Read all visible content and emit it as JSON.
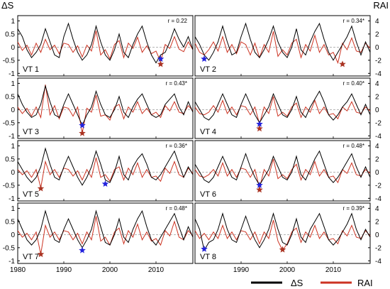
{
  "chart_data": {
    "type": "line",
    "left_axis_label": "ΔS",
    "right_axis_label": "RAI",
    "left_ticks": [
      "1",
      "0.5",
      "0",
      "-0.5",
      "-1"
    ],
    "right_ticks": [
      "4",
      "2",
      "0",
      "-2",
      "-4"
    ],
    "left_range": [
      -1.1,
      1.2
    ],
    "right_range": [
      -4.4,
      4.8
    ],
    "x_ticks": [
      "1980",
      "1990",
      "2000",
      "2010"
    ],
    "x_range": [
      1980,
      2018
    ],
    "grid": false,
    "legend": {
      "position": "bottom-right",
      "entries": [
        {
          "label": "ΔS",
          "color": "#000000"
        },
        {
          "label": "RAI",
          "color": "#cc3322"
        }
      ]
    },
    "colors": {
      "ds": "#000000",
      "rai": "#cc3322",
      "blue_star": "#2222dd",
      "red_star": "#aa3322",
      "zero_line": "#888888"
    },
    "years": [
      1980,
      1981,
      1982,
      1983,
      1984,
      1985,
      1986,
      1987,
      1988,
      1989,
      1990,
      1991,
      1992,
      1993,
      1994,
      1995,
      1996,
      1997,
      1998,
      1999,
      2000,
      2001,
      2002,
      2003,
      2004,
      2005,
      2006,
      2007,
      2008,
      2009,
      2010,
      2011,
      2012,
      2013,
      2014,
      2015,
      2016,
      2017,
      2018
    ],
    "panels": [
      {
        "label": "VT 1",
        "r": "r = 0.22",
        "ds": [
          0.7,
          0.4,
          -0.1,
          -0.4,
          -0.2,
          0.1,
          0.7,
          0.2,
          -0.3,
          -0.4,
          0.4,
          0.9,
          0.3,
          -0.2,
          -0.5,
          -0.3,
          0.1,
          0.8,
          0.2,
          -0.3,
          -0.5,
          -0.1,
          0.5,
          -0.2,
          -0.4,
          0.1,
          0.5,
          0.8,
          0.2,
          -0.3,
          -0.6,
          -0.3,
          -0.2,
          0.2,
          0.7,
          0.3,
          0.0,
          0.4,
          -0.1
        ],
        "rai": [
          0.8,
          -0.5,
          0.3,
          -1.2,
          0.6,
          -0.8,
          1.2,
          -0.4,
          0.3,
          -1.0,
          0.6,
          0.4,
          -0.8,
          0.2,
          -1.5,
          0.3,
          -0.6,
          2.5,
          -1.2,
          -0.4,
          -1.8,
          0.4,
          1.0,
          -1.6,
          0.6,
          -0.2,
          1.5,
          -0.8,
          0.2,
          -1.0,
          -0.6,
          -2.2,
          0.4,
          -0.2,
          1.6,
          -0.3,
          -0.7,
          0.8,
          -0.4
        ],
        "blue_star": {
          "year": 2011,
          "value": -0.45
        },
        "red_star": {
          "year": 2011,
          "value": -2.6
        }
      },
      {
        "label": "VT 2",
        "r": "r = 0.34*",
        "ds": [
          0.4,
          0.1,
          -0.3,
          -0.5,
          -0.2,
          0.2,
          0.8,
          0.2,
          -0.3,
          -0.2,
          0.4,
          0.9,
          0.3,
          -0.2,
          -0.4,
          -0.1,
          0.3,
          0.8,
          0.2,
          -0.2,
          -0.4,
          0.0,
          0.7,
          -0.1,
          -0.3,
          0.2,
          0.6,
          0.9,
          0.3,
          -0.2,
          -0.5,
          -0.2,
          0.1,
          0.4,
          0.8,
          0.2,
          -0.3,
          0.2,
          -0.2
        ],
        "rai": [
          0.6,
          -0.8,
          -1.2,
          -0.4,
          0.8,
          -0.6,
          1.6,
          -0.8,
          0.4,
          -1.0,
          0.8,
          0.4,
          -1.2,
          0.6,
          -1.6,
          0.4,
          -0.8,
          2.4,
          -1.4,
          -0.4,
          -1.2,
          0.6,
          1.2,
          -1.6,
          0.4,
          -0.6,
          1.8,
          -0.8,
          0.4,
          -1.2,
          -0.8,
          -2.4,
          0.6,
          -0.4,
          1.4,
          -0.6,
          -0.8,
          0.6,
          -0.2
        ],
        "blue_star": {
          "year": 1982,
          "value": -0.45
        },
        "red_star": {
          "year": 2012,
          "value": -2.6
        }
      },
      {
        "label": "VT 3",
        "r": "r = 0.43*",
        "ds": [
          0.6,
          0.2,
          -0.1,
          -0.3,
          -0.2,
          0.2,
          0.9,
          0.3,
          -0.2,
          -0.3,
          0.2,
          0.6,
          0.2,
          -0.2,
          -0.6,
          -0.2,
          0.1,
          0.7,
          0.2,
          -0.2,
          -0.3,
          0.0,
          0.5,
          -0.1,
          -0.3,
          0.1,
          0.4,
          0.6,
          0.2,
          -0.2,
          -0.3,
          -0.2,
          0.2,
          0.4,
          0.6,
          0.1,
          -0.2,
          0.3,
          -0.1
        ],
        "rai": [
          0.4,
          -0.6,
          0.2,
          -1.0,
          0.4,
          -1.2,
          3.8,
          -0.8,
          0.6,
          -1.4,
          0.4,
          0.2,
          -1.0,
          0.4,
          -3.6,
          0.2,
          -0.4,
          2.2,
          -1.0,
          -0.8,
          -1.6,
          0.4,
          0.8,
          -1.4,
          0.4,
          -0.4,
          1.2,
          -0.6,
          0.2,
          -0.8,
          -0.4,
          -1.2,
          0.6,
          -0.2,
          1.2,
          -0.4,
          -0.6,
          0.6,
          -0.2
        ],
        "blue_star": {
          "year": 1994,
          "value": -0.6
        },
        "red_star": {
          "year": 1994,
          "value": -3.6
        }
      },
      {
        "label": "VT 4",
        "r": "r = 0.40*",
        "ds": [
          0.3,
          0.0,
          -0.3,
          -0.4,
          -0.2,
          0.2,
          0.6,
          0.2,
          -0.2,
          -0.3,
          0.2,
          0.6,
          0.2,
          -0.2,
          -0.5,
          -0.2,
          0.1,
          0.6,
          0.2,
          -0.2,
          -0.3,
          0.0,
          0.5,
          -0.1,
          -0.3,
          0.1,
          0.4,
          0.7,
          0.3,
          -0.2,
          -0.4,
          -0.2,
          0.1,
          0.3,
          0.6,
          0.2,
          -0.2,
          0.2,
          -0.2
        ],
        "rai": [
          0.4,
          -0.6,
          -0.8,
          -0.4,
          0.6,
          -0.4,
          1.4,
          -0.6,
          0.4,
          -0.8,
          0.6,
          0.4,
          -0.8,
          0.4,
          -2.2,
          0.4,
          -0.6,
          2.0,
          -1.0,
          -0.4,
          -1.0,
          0.4,
          1.0,
          -1.2,
          0.4,
          -0.4,
          1.4,
          -0.6,
          0.4,
          -0.8,
          -0.6,
          -1.4,
          0.4,
          -0.2,
          1.2,
          -0.4,
          -0.6,
          0.4,
          -0.2
        ],
        "blue_star": {
          "year": 1994,
          "value": -0.55
        },
        "red_star": {
          "year": 1994,
          "value": -2.9
        }
      },
      {
        "label": "VT 5",
        "r": "r = 0.36*",
        "ds": [
          0.4,
          0.1,
          -0.2,
          -0.4,
          -0.2,
          0.2,
          0.9,
          0.3,
          -0.2,
          -0.3,
          0.2,
          0.6,
          0.2,
          -0.2,
          -0.5,
          -0.2,
          0.2,
          0.8,
          0.3,
          -0.3,
          -0.4,
          0.0,
          0.6,
          -0.1,
          -0.3,
          0.2,
          0.5,
          0.7,
          0.3,
          -0.2,
          -0.3,
          -0.1,
          0.2,
          0.5,
          0.8,
          0.3,
          -0.2,
          0.2,
          -0.1
        ],
        "rai": [
          0.4,
          -0.4,
          0.2,
          -0.8,
          0.4,
          -2.4,
          1.6,
          -0.4,
          0.4,
          -0.8,
          0.6,
          0.4,
          -0.6,
          0.2,
          -1.2,
          0.4,
          -0.8,
          2.2,
          -0.8,
          -0.4,
          -1.4,
          0.4,
          0.8,
          -1.2,
          0.6,
          -0.4,
          1.4,
          -0.8,
          0.4,
          -0.8,
          -0.6,
          -1.4,
          0.6,
          -0.2,
          1.6,
          -0.4,
          -0.8,
          0.6,
          -0.2
        ],
        "blue_star": {
          "year": 1999,
          "value": -0.45
        },
        "red_star": {
          "year": 1985,
          "value": -2.5
        }
      },
      {
        "label": "VT 6",
        "r": "r = 0.48*",
        "ds": [
          0.3,
          0.0,
          -0.3,
          -0.4,
          -0.2,
          0.2,
          0.6,
          0.2,
          -0.2,
          -0.3,
          0.2,
          0.7,
          0.2,
          -0.2,
          -0.5,
          -0.2,
          0.1,
          0.6,
          0.2,
          -0.2,
          -0.3,
          0.0,
          0.6,
          -0.1,
          -0.3,
          0.1,
          0.5,
          0.8,
          0.3,
          -0.2,
          -0.4,
          -0.2,
          0.1,
          0.4,
          0.7,
          0.2,
          -0.2,
          0.2,
          -0.2
        ],
        "rai": [
          0.4,
          -0.6,
          -0.8,
          -0.4,
          0.4,
          -0.6,
          1.4,
          -0.6,
          0.4,
          -0.8,
          0.6,
          0.4,
          -0.8,
          0.4,
          -2.4,
          0.4,
          -0.6,
          2.0,
          -1.0,
          -0.4,
          -1.0,
          0.4,
          1.2,
          -1.2,
          0.4,
          -0.4,
          1.6,
          -0.6,
          0.4,
          -0.8,
          -0.6,
          -1.6,
          0.4,
          -0.2,
          1.4,
          -0.4,
          -0.6,
          0.4,
          -0.2
        ],
        "blue_star": {
          "year": 1994,
          "value": -0.5
        },
        "red_star": {
          "year": 1994,
          "value": -2.7
        }
      },
      {
        "label": "VT 7",
        "r": "r = 0.48*",
        "ds": [
          0.6,
          0.2,
          -0.2,
          -0.4,
          -0.2,
          0.2,
          0.9,
          0.3,
          -0.2,
          -0.3,
          0.2,
          0.6,
          0.2,
          -0.2,
          -0.5,
          -0.2,
          0.2,
          0.9,
          0.3,
          -0.3,
          -0.4,
          0.0,
          0.6,
          -0.1,
          -0.3,
          0.2,
          0.6,
          0.9,
          0.3,
          -0.2,
          -0.4,
          -0.1,
          0.2,
          0.5,
          0.8,
          0.3,
          -0.2,
          0.3,
          -0.1
        ],
        "rai": [
          0.6,
          -0.4,
          0.2,
          -0.8,
          0.4,
          -3.0,
          1.4,
          -0.4,
          0.4,
          -0.8,
          0.6,
          0.4,
          -0.8,
          0.2,
          -1.4,
          0.4,
          -0.8,
          2.8,
          -1.0,
          -0.4,
          -1.6,
          0.4,
          1.0,
          -1.4,
          0.6,
          -0.4,
          1.6,
          -0.8,
          0.4,
          -1.0,
          -0.6,
          -1.6,
          0.6,
          -0.2,
          2.0,
          -0.4,
          -0.8,
          0.6,
          -0.2
        ],
        "blue_star": {
          "year": 1994,
          "value": -0.6
        },
        "red_star": {
          "year": 1985,
          "value": -3.0
        }
      },
      {
        "label": "VT 8",
        "r": "r = 0.39*",
        "ds": [
          0.6,
          0.2,
          -0.6,
          -0.3,
          -0.2,
          0.2,
          0.8,
          0.2,
          -0.2,
          -0.3,
          0.2,
          0.7,
          0.2,
          -0.2,
          -0.5,
          -0.2,
          0.2,
          0.8,
          0.2,
          -0.3,
          -0.4,
          0.0,
          0.6,
          -0.1,
          -0.3,
          0.2,
          0.5,
          0.8,
          0.3,
          -0.2,
          -0.4,
          -0.2,
          0.1,
          0.4,
          0.8,
          0.2,
          -0.2,
          0.2,
          -0.1
        ],
        "rai": [
          0.6,
          -0.6,
          0.2,
          -0.8,
          0.4,
          -0.6,
          1.4,
          -0.6,
          0.4,
          -0.8,
          0.6,
          0.4,
          -0.8,
          0.4,
          -1.4,
          0.4,
          -0.6,
          2.2,
          -1.0,
          -2.4,
          -1.4,
          0.4,
          1.0,
          -1.2,
          0.4,
          -0.4,
          1.4,
          -0.6,
          0.4,
          -0.8,
          -0.6,
          -1.4,
          0.6,
          -0.2,
          1.4,
          -0.4,
          -0.6,
          0.6,
          -0.2
        ],
        "blue_star": {
          "year": 1982,
          "value": -0.55
        },
        "red_star": {
          "year": 1999,
          "value": -2.3
        }
      }
    ]
  }
}
